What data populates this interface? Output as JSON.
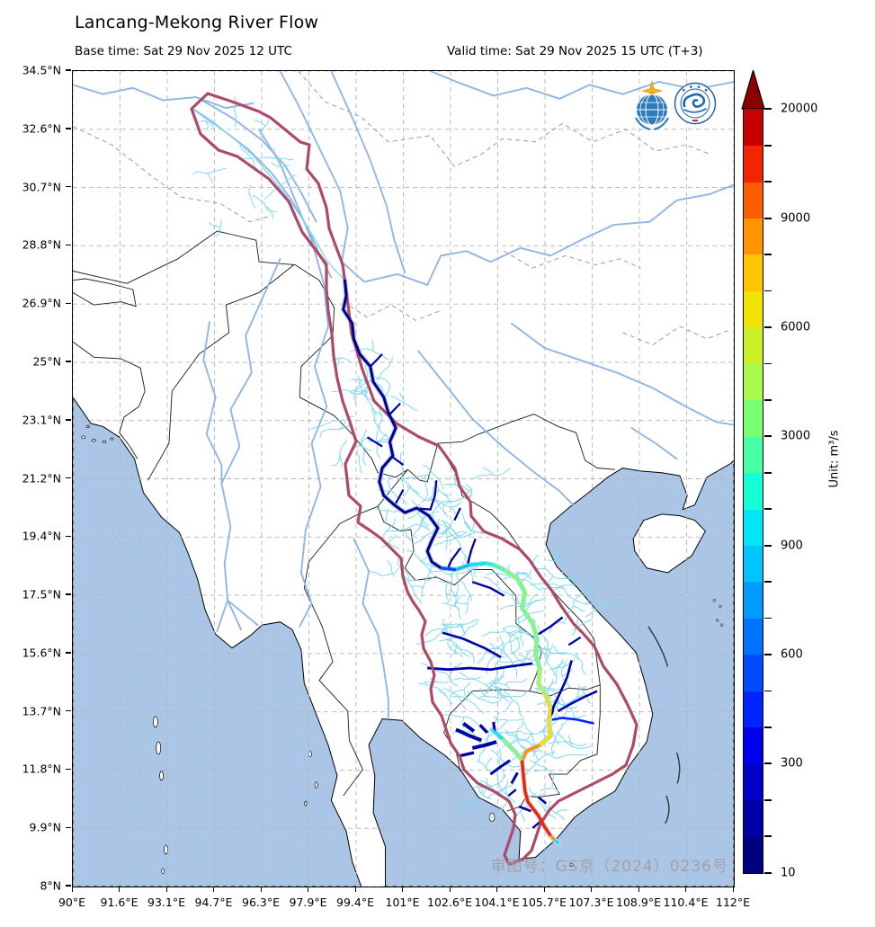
{
  "header": {
    "title": "Lancang-Mekong River Flow",
    "base_time": "Base time: Sat 29 Nov 2025 12 UTC",
    "valid_time": "Valid time: Sat 29 Nov 2025 15 UTC (T+3)"
  },
  "map": {
    "watermark": "审图号：GS京（2024）0236号",
    "logos": {
      "wmo": "WMO logo",
      "cma": "CMA logo"
    },
    "colors": {
      "ocean": "#abc5e7",
      "land": "#ffffff",
      "coast": "#000000",
      "border": "#1a1a1a",
      "province_dash": "#9a9a9a",
      "grid": "#b5b5b5",
      "river_base": "#8fb6e4",
      "river_halo": "#bdd3ec",
      "tributary": "#7fd9f0",
      "basin_outline": "#ae4a68",
      "stem_navy": "#00008b",
      "nine_dash": "#333333"
    }
  },
  "axes": {
    "x_tick_labels": [
      "90°E",
      "91.6°E",
      "93.1°E",
      "94.7°E",
      "96.3°E",
      "97.9°E",
      "99.4°E",
      "101°E",
      "102.6°E",
      "104.1°E",
      "105.7°E",
      "107.3°E",
      "108.9°E",
      "110.4°E",
      "112°E"
    ],
    "y_tick_labels": [
      "34.5°N",
      "32.6°N",
      "30.7°N",
      "28.8°N",
      "26.9°N",
      "25°N",
      "23.1°N",
      "21.2°N",
      "19.4°N",
      "17.5°N",
      "15.6°N",
      "13.7°N",
      "11.8°N",
      "9.9°N",
      "8°N"
    ]
  },
  "colorbar": {
    "unit_label": "Unit: m³/s",
    "boundaries": [
      10,
      100,
      200,
      300,
      400,
      500,
      600,
      700,
      800,
      900,
      1000,
      2000,
      3000,
      4000,
      5000,
      6000,
      7000,
      8000,
      9000,
      10000,
      15000,
      20000
    ],
    "labeled_values": [
      10,
      300,
      600,
      900,
      3000,
      6000,
      9000,
      20000
    ],
    "segment_colors": [
      "#000080",
      "#0000a4",
      "#0000c8",
      "#0000ee",
      "#0024ff",
      "#004cff",
      "#0074ff",
      "#009cff",
      "#00c4ff",
      "#00e6f4",
      "#14ffd4",
      "#46ffa4",
      "#78ff74",
      "#a8fa4c",
      "#ccf128",
      "#f2e400",
      "#ffc400",
      "#ff9400",
      "#ff5e00",
      "#f32500",
      "#c80000"
    ],
    "over_color": "#8e0000"
  }
}
